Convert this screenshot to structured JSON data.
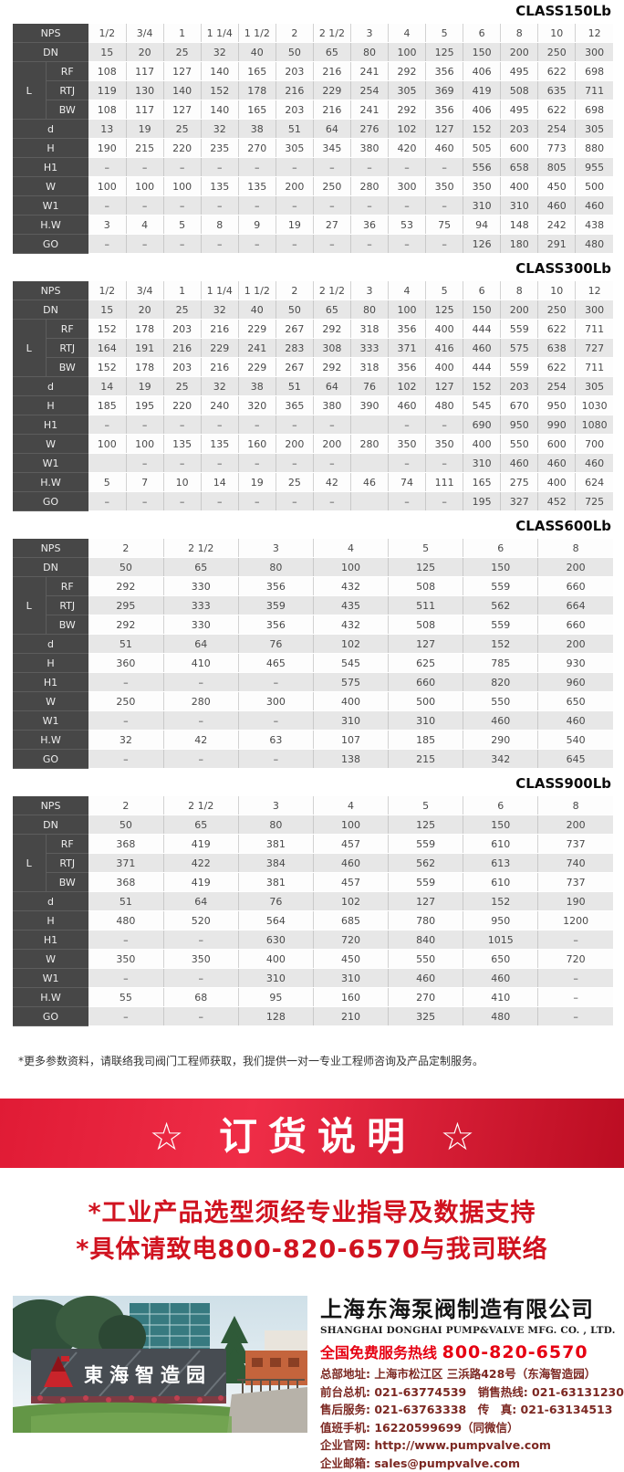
{
  "tables": [
    {
      "title": "CLASS150Lb",
      "rows": [
        {
          "label": "NPS",
          "values": [
            "1/2",
            "3/4",
            "1",
            "1 1/4",
            "1 1/2",
            "2",
            "2 1/2",
            "3",
            "4",
            "5",
            "6",
            "8",
            "10",
            "12"
          ]
        },
        {
          "label": "DN",
          "values": [
            "15",
            "20",
            "25",
            "32",
            "40",
            "50",
            "65",
            "80",
            "100",
            "125",
            "150",
            "200",
            "250",
            "300"
          ]
        },
        {
          "label": "RF",
          "group": "L",
          "values": [
            "108",
            "117",
            "127",
            "140",
            "165",
            "203",
            "216",
            "241",
            "292",
            "356",
            "406",
            "495",
            "622",
            "698"
          ]
        },
        {
          "label": "RTJ",
          "group": "L",
          "values": [
            "119",
            "130",
            "140",
            "152",
            "178",
            "216",
            "229",
            "254",
            "305",
            "369",
            "419",
            "508",
            "635",
            "711"
          ]
        },
        {
          "label": "BW",
          "group": "L",
          "values": [
            "108",
            "117",
            "127",
            "140",
            "165",
            "203",
            "216",
            "241",
            "292",
            "356",
            "406",
            "495",
            "622",
            "698"
          ]
        },
        {
          "label": "d",
          "values": [
            "13",
            "19",
            "25",
            "32",
            "38",
            "51",
            "64",
            "276",
            "102",
            "127",
            "152",
            "203",
            "254",
            "305"
          ]
        },
        {
          "label": "H",
          "values": [
            "190",
            "215",
            "220",
            "235",
            "270",
            "305",
            "345",
            "380",
            "420",
            "460",
            "505",
            "600",
            "773",
            "880"
          ]
        },
        {
          "label": "H1",
          "values": [
            "–",
            "–",
            "–",
            "–",
            "–",
            "–",
            "–",
            "–",
            "–",
            "–",
            "556",
            "658",
            "805",
            "955"
          ]
        },
        {
          "label": "W",
          "values": [
            "100",
            "100",
            "100",
            "135",
            "135",
            "200",
            "250",
            "280",
            "300",
            "350",
            "350",
            "400",
            "450",
            "500"
          ]
        },
        {
          "label": "W1",
          "values": [
            "–",
            "–",
            "–",
            "–",
            "–",
            "–",
            "–",
            "–",
            "–",
            "–",
            "310",
            "310",
            "460",
            "460"
          ]
        },
        {
          "label": "H.W",
          "values": [
            "3",
            "4",
            "5",
            "8",
            "9",
            "19",
            "27",
            "36",
            "53",
            "75",
            "94",
            "148",
            "242",
            "438"
          ]
        },
        {
          "label": "GO",
          "values": [
            "–",
            "–",
            "–",
            "–",
            "–",
            "–",
            "–",
            "–",
            "–",
            "–",
            "126",
            "180",
            "291",
            "480"
          ]
        }
      ]
    },
    {
      "title": "CLASS300Lb",
      "rows": [
        {
          "label": "NPS",
          "values": [
            "1/2",
            "3/4",
            "1",
            "1 1/4",
            "1 1/2",
            "2",
            "2 1/2",
            "3",
            "4",
            "5",
            "6",
            "8",
            "10",
            "12"
          ]
        },
        {
          "label": "DN",
          "values": [
            "15",
            "20",
            "25",
            "32",
            "40",
            "50",
            "65",
            "80",
            "100",
            "125",
            "150",
            "200",
            "250",
            "300"
          ]
        },
        {
          "label": "RF",
          "group": "L",
          "values": [
            "152",
            "178",
            "203",
            "216",
            "229",
            "267",
            "292",
            "318",
            "356",
            "400",
            "444",
            "559",
            "622",
            "711"
          ]
        },
        {
          "label": "RTJ",
          "group": "L",
          "values": [
            "164",
            "191",
            "216",
            "229",
            "241",
            "283",
            "308",
            "333",
            "371",
            "416",
            "460",
            "575",
            "638",
            "727"
          ]
        },
        {
          "label": "BW",
          "group": "L",
          "values": [
            "152",
            "178",
            "203",
            "216",
            "229",
            "267",
            "292",
            "318",
            "356",
            "400",
            "444",
            "559",
            "622",
            "711"
          ]
        },
        {
          "label": "d",
          "values": [
            "14",
            "19",
            "25",
            "32",
            "38",
            "51",
            "64",
            "76",
            "102",
            "127",
            "152",
            "203",
            "254",
            "305"
          ]
        },
        {
          "label": "H",
          "values": [
            "185",
            "195",
            "220",
            "240",
            "320",
            "365",
            "380",
            "390",
            "460",
            "480",
            "545",
            "670",
            "950",
            "1030"
          ]
        },
        {
          "label": "H1",
          "values": [
            "–",
            "–",
            "–",
            "–",
            "–",
            "–",
            "–",
            "",
            "–",
            "–",
            "690",
            "950",
            "990",
            "1080"
          ]
        },
        {
          "label": "W",
          "values": [
            "100",
            "100",
            "135",
            "135",
            "160",
            "200",
            "200",
            "280",
            "350",
            "350",
            "400",
            "550",
            "600",
            "700"
          ]
        },
        {
          "label": "W1",
          "values": [
            "",
            "–",
            "–",
            "–",
            "–",
            "–",
            "–",
            "",
            "–",
            "–",
            "310",
            "460",
            "460",
            "460"
          ]
        },
        {
          "label": "H.W",
          "values": [
            "5",
            "7",
            "10",
            "14",
            "19",
            "25",
            "42",
            "46",
            "74",
            "111",
            "165",
            "275",
            "400",
            "624"
          ]
        },
        {
          "label": "GO",
          "values": [
            "–",
            "–",
            "–",
            "–",
            "–",
            "–",
            "–",
            "",
            "–",
            "–",
            "195",
            "327",
            "452",
            "725"
          ]
        }
      ]
    },
    {
      "title": "CLASS600Lb",
      "rows": [
        {
          "label": "NPS",
          "values": [
            "2",
            "2 1/2",
            "3",
            "4",
            "5",
            "6",
            "8"
          ]
        },
        {
          "label": "DN",
          "values": [
            "50",
            "65",
            "80",
            "100",
            "125",
            "150",
            "200"
          ]
        },
        {
          "label": "RF",
          "group": "L",
          "values": [
            "292",
            "330",
            "356",
            "432",
            "508",
            "559",
            "660"
          ]
        },
        {
          "label": "RTJ",
          "group": "L",
          "values": [
            "295",
            "333",
            "359",
            "435",
            "511",
            "562",
            "664"
          ]
        },
        {
          "label": "BW",
          "group": "L",
          "values": [
            "292",
            "330",
            "356",
            "432",
            "508",
            "559",
            "660"
          ]
        },
        {
          "label": "d",
          "values": [
            "51",
            "64",
            "76",
            "102",
            "127",
            "152",
            "200"
          ]
        },
        {
          "label": "H",
          "values": [
            "360",
            "410",
            "465",
            "545",
            "625",
            "785",
            "930"
          ]
        },
        {
          "label": "H1",
          "values": [
            "–",
            "–",
            "–",
            "575",
            "660",
            "820",
            "960"
          ]
        },
        {
          "label": "W",
          "values": [
            "250",
            "280",
            "300",
            "400",
            "500",
            "550",
            "650"
          ]
        },
        {
          "label": "W1",
          "values": [
            "–",
            "–",
            "–",
            "310",
            "310",
            "460",
            "460"
          ]
        },
        {
          "label": "H.W",
          "values": [
            "32",
            "42",
            "63",
            "107",
            "185",
            "290",
            "540"
          ]
        },
        {
          "label": "GO",
          "values": [
            "–",
            "–",
            "–",
            "138",
            "215",
            "342",
            "645"
          ]
        }
      ]
    },
    {
      "title": "CLASS900Lb",
      "rows": [
        {
          "label": "NPS",
          "values": [
            "2",
            "2 1/2",
            "3",
            "4",
            "5",
            "6",
            "8"
          ]
        },
        {
          "label": "DN",
          "values": [
            "50",
            "65",
            "80",
            "100",
            "125",
            "150",
            "200"
          ]
        },
        {
          "label": "RF",
          "group": "L",
          "values": [
            "368",
            "419",
            "381",
            "457",
            "559",
            "610",
            "737"
          ]
        },
        {
          "label": "RTJ",
          "group": "L",
          "values": [
            "371",
            "422",
            "384",
            "460",
            "562",
            "613",
            "740"
          ]
        },
        {
          "label": "BW",
          "group": "L",
          "values": [
            "368",
            "419",
            "381",
            "457",
            "559",
            "610",
            "737"
          ]
        },
        {
          "label": "d",
          "values": [
            "51",
            "64",
            "76",
            "102",
            "127",
            "152",
            "190"
          ]
        },
        {
          "label": "H",
          "values": [
            "480",
            "520",
            "564",
            "685",
            "780",
            "950",
            "1200"
          ]
        },
        {
          "label": "H1",
          "values": [
            "–",
            "–",
            "630",
            "720",
            "840",
            "1015",
            "–"
          ]
        },
        {
          "label": "W",
          "values": [
            "350",
            "350",
            "400",
            "450",
            "550",
            "650",
            "720"
          ]
        },
        {
          "label": "W1",
          "values": [
            "–",
            "–",
            "310",
            "310",
            "460",
            "460",
            "–"
          ]
        },
        {
          "label": "H.W",
          "values": [
            "55",
            "68",
            "95",
            "160",
            "270",
            "410",
            "–"
          ]
        },
        {
          "label": "GO",
          "values": [
            "–",
            "–",
            "128",
            "210",
            "325",
            "480",
            "–"
          ]
        }
      ]
    }
  ],
  "note": "*更多参数资料，请联络我司阀门工程师获取，我们提供一对一专业工程师咨询及产品定制服务。",
  "banner": {
    "title": "☆ 订货说明 ☆"
  },
  "notice_lines": [
    "*工业产品选型须经专业指导及数据支持",
    "*具体请致电800-820-6570与我司联络"
  ],
  "footer": {
    "photo_sign_text": "東海智造园",
    "company_cn": "上海东海泵阀制造有限公司",
    "company_en": "SHANGHAI DONGHAI PUMP&VALVE MFG. CO. , LTD.",
    "hotline_label": "全国免费服务热线",
    "hotline_number": "800-820-6570",
    "contact_lines": [
      "总部地址: 上海市松江区 三浜路428号（东海智造园）",
      "前台总机: 021-63774539　销售热线: 021-63131230",
      "售后服务: 021-63763338　传　真: 021-63134513",
      "值班手机: 16220599699（同微信）",
      "企业官网: http://www.pumpvalve.com",
      "企业邮箱: sales@pumpvalve.com"
    ]
  },
  "colors": {
    "header_cell": "#474747",
    "row_alt": "#e7e7e7",
    "banner_red": "#d81531",
    "notice_red": "#d0121f",
    "hotline_red": "#e60012",
    "contact_text": "#7c2822",
    "logo_red": "#c9242b"
  }
}
